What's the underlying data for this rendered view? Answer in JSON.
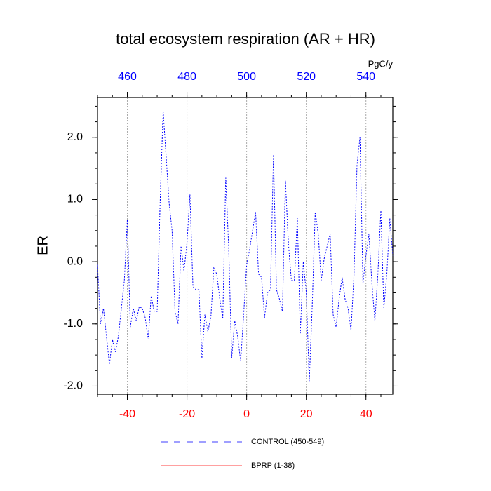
{
  "chart_data": {
    "type": "line",
    "title": "total ecosystem respiration (AR + HR)",
    "ylabel": "ER",
    "x2unit": "PgC/y",
    "x": [
      -50,
      -49,
      -48,
      -47,
      -46,
      -45,
      -44,
      -43,
      -42,
      -41,
      -40,
      -39,
      -38,
      -37,
      -36,
      -35,
      -34,
      -33,
      -32,
      -31,
      -30,
      -29,
      -28,
      -27,
      -26,
      -25,
      -24,
      -23,
      -22,
      -21,
      -20,
      -19,
      -18,
      -17,
      -16,
      -15,
      -14,
      -13,
      -12,
      -11,
      -10,
      -9,
      -8,
      -7,
      -6,
      -5,
      -4,
      -3,
      -2,
      -1,
      0,
      1,
      2,
      3,
      4,
      5,
      6,
      7,
      8,
      9,
      10,
      11,
      12,
      13,
      14,
      15,
      16,
      17,
      18,
      19,
      20,
      21,
      22,
      23,
      24,
      25,
      26,
      27,
      28,
      29,
      30,
      31,
      32,
      33,
      34,
      35,
      36,
      37,
      38,
      39,
      40,
      41,
      42,
      43,
      44,
      45,
      46,
      47,
      48,
      49
    ],
    "series": [
      {
        "name": "CONTROL (450-549)",
        "color": "#0000ff",
        "dash": true,
        "values": [
          -0.05,
          -1.0,
          -0.75,
          -1.2,
          -1.65,
          -1.25,
          -1.45,
          -1.2,
          -0.75,
          -0.3,
          0.68,
          -1.05,
          -0.75,
          -0.95,
          -0.72,
          -0.75,
          -0.9,
          -1.25,
          -0.55,
          -0.8,
          -0.8,
          0.95,
          2.42,
          1.7,
          0.95,
          0.5,
          -0.8,
          -1.0,
          0.25,
          -0.15,
          0.3,
          1.08,
          -0.4,
          -0.45,
          -0.45,
          -1.55,
          -0.85,
          -1.12,
          -0.9,
          -0.1,
          -0.2,
          -0.6,
          -0.92,
          1.35,
          0.2,
          -1.55,
          -0.95,
          -1.2,
          -1.6,
          -0.85,
          -0.05,
          0.2,
          0.5,
          0.8,
          -0.2,
          -0.25,
          -0.9,
          -0.5,
          -0.45,
          1.72,
          -0.45,
          -0.6,
          -0.8,
          1.3,
          0.3,
          -0.3,
          -0.3,
          0.7,
          -1.15,
          0.0,
          -0.5,
          -1.92,
          -0.7,
          0.8,
          0.45,
          -0.3,
          0.05,
          0.25,
          0.45,
          -0.85,
          -1.05,
          -0.6,
          -0.25,
          -0.6,
          -0.75,
          -1.1,
          -0.2,
          1.55,
          2.0,
          -0.35,
          0.1,
          0.45,
          -0.35,
          -0.95,
          -0.2,
          0.82,
          -0.75,
          -0.2,
          0.7,
          0.1
        ]
      },
      {
        "name": "BPRP (1-38)",
        "color": "#ff0000",
        "dash": false,
        "values": [
          null,
          null,
          null,
          null,
          null,
          null,
          null,
          null,
          null,
          null,
          null,
          null,
          null,
          null,
          null,
          null,
          null,
          null,
          null,
          null,
          null,
          null,
          null,
          null,
          null,
          null,
          null,
          null,
          null,
          null,
          null,
          null,
          null,
          null,
          null,
          null,
          null,
          null,
          null,
          null,
          null,
          null,
          null,
          null,
          null,
          null,
          null,
          null,
          null,
          null,
          null,
          null,
          null,
          null,
          null,
          null,
          null,
          null,
          null,
          null,
          null,
          null,
          null,
          null,
          null,
          null,
          null,
          null,
          null,
          null,
          null,
          null,
          null,
          null,
          null,
          null,
          null,
          null,
          null,
          null,
          null,
          null,
          null,
          null,
          null,
          null,
          null,
          null,
          null,
          null,
          null,
          null,
          null,
          null,
          null,
          null,
          null,
          null,
          null,
          null
        ]
      }
    ],
    "xlim": [
      -50,
      49
    ],
    "xticks": [
      -40,
      -20,
      0,
      20,
      40
    ],
    "xtick_color": "#ff0000",
    "x2lim": [
      450,
      549
    ],
    "x2ticks": [
      460,
      480,
      500,
      520,
      540
    ],
    "x2tick_color": "#0000ff",
    "ylim": [
      -2.13,
      2.64
    ],
    "yticks": [
      {
        "value": 2,
        "label": "2.0"
      },
      {
        "value": 1,
        "label": "1.0"
      },
      {
        "value": 0,
        "label": "0.0"
      },
      {
        "value": -1,
        "label": "-1.0"
      },
      {
        "value": -2,
        "label": "-2.0"
      }
    ],
    "grid": true,
    "legend": "bottom"
  }
}
